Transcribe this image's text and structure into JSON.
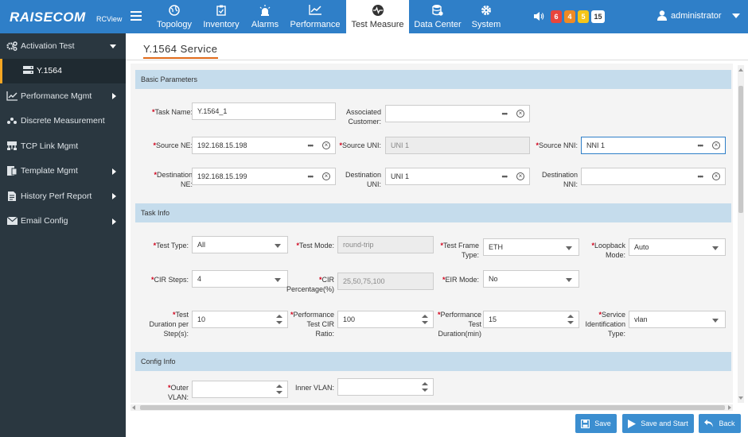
{
  "brand": {
    "logo": "RAISECOM",
    "sub": "RCView"
  },
  "nav": [
    {
      "label": "Topology",
      "icon": "globe-icon"
    },
    {
      "label": "Inventory",
      "icon": "clipboard-icon"
    },
    {
      "label": "Alarms",
      "icon": "siren-icon"
    },
    {
      "label": "Performance",
      "icon": "line-chart-icon"
    },
    {
      "label": "Test Measure",
      "icon": "heartbeat-icon",
      "active": true
    },
    {
      "label": "Data Center",
      "icon": "database-icon"
    },
    {
      "label": "System",
      "icon": "gear-icon"
    }
  ],
  "alarm_badges": [
    {
      "count": "6",
      "color": "#e8453c"
    },
    {
      "count": "4",
      "color": "#f08a24"
    },
    {
      "count": "5",
      "color": "#f5c518"
    },
    {
      "count": "15",
      "color": "#ffffff"
    }
  ],
  "user": {
    "name": "administrator"
  },
  "sidebar": {
    "items": [
      {
        "label": "Activation Test",
        "expanded": true
      },
      {
        "label": "Y.1564",
        "sub": true
      },
      {
        "label": "Performance Mgmt"
      },
      {
        "label": "Discrete Measurement"
      },
      {
        "label": "TCP Link Mgmt"
      },
      {
        "label": "Template Mgmt"
      },
      {
        "label": "History Perf Report"
      },
      {
        "label": "Email Config"
      }
    ]
  },
  "page": {
    "title": "Y.1564 Service"
  },
  "sections": {
    "basic": "Basic Parameters",
    "task": "Task Info",
    "config": "Config Info"
  },
  "basic": {
    "task_name": {
      "label": "Task Name:",
      "value": "Y.1564_1"
    },
    "assoc_customer": {
      "label1": "Associated",
      "label2": "Customer:",
      "value": ""
    },
    "source_ne": {
      "label": "Source NE:",
      "value": "192.168.15.198"
    },
    "source_uni": {
      "label": "Source UNI:",
      "value": "UNI 1"
    },
    "source_nni": {
      "label": "Source NNI:",
      "value": "NNI 1"
    },
    "dest_ne": {
      "label1": "Destination",
      "label2": "NE:",
      "value": "192.168.15.199"
    },
    "dest_uni": {
      "label1": "Destination",
      "label2": "UNI:",
      "value": "UNI 1"
    },
    "dest_nni": {
      "label1": "Destination",
      "label2": "NNI:",
      "value": ""
    }
  },
  "task": {
    "test_type": {
      "label": "Test Type:",
      "value": "All"
    },
    "test_mode": {
      "label": "Test Mode:",
      "value": "round-trip"
    },
    "frame_type": {
      "label1": "Test Frame",
      "label2": "Type:",
      "value": "ETH"
    },
    "loopback": {
      "label1": "Loopback",
      "label2": "Mode:",
      "value": "Auto"
    },
    "cir_steps": {
      "label": "CIR Steps:",
      "value": "4"
    },
    "cir_pct": {
      "label1": "CIR",
      "label2": "Percentage(%)",
      "value": "25,50,75,100"
    },
    "eir_mode": {
      "label": "EIR Mode:",
      "value": "No"
    },
    "duration": {
      "label1": "Test",
      "label2": "Duration per",
      "label3": "Step(s):",
      "value": "10"
    },
    "perf_cir": {
      "label1": "Performance",
      "label2": "Test CIR",
      "label3": "Ratio:",
      "value": "100"
    },
    "perf_dur": {
      "label1": "Performance",
      "label2": "Test",
      "label3": "Duration(min)",
      "value": "15"
    },
    "svc_id": {
      "label1": "Service",
      "label2": "Identification",
      "label3": "Type:",
      "value": "vlan"
    }
  },
  "config": {
    "outer_vlan": {
      "label1": "Outer",
      "label2": "VLAN:",
      "value": ""
    },
    "inner_vlan": {
      "label": "Inner VLAN:",
      "value": ""
    }
  },
  "buttons": {
    "save": "Save",
    "save_start": "Save and Start",
    "back": "Back"
  }
}
